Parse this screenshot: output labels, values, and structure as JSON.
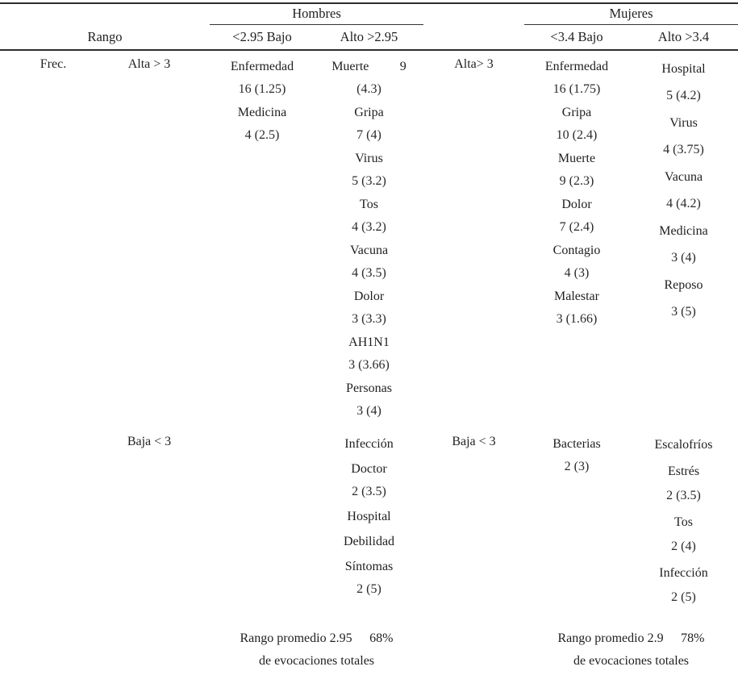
{
  "header": {
    "group_hombres": "Hombres",
    "group_mujeres": "Mujeres",
    "rango": "Rango",
    "hombres_bajo": "<2.95 Bajo",
    "hombres_alto": "Alto >2.95",
    "mujeres_bajo": "<3.4  Bajo",
    "mujeres_alto": "Alto  >3.4"
  },
  "labels": {
    "frec": "Frec.",
    "alta_hombres": "Alta > 3",
    "baja_hombres": "Baja < 3",
    "alta_mujeres": "Alta> 3",
    "baja_mujeres": "Baja < 3"
  },
  "cells": {
    "hombres_bajo_alta": [
      {
        "word": "Enfermedad",
        "value": "16 (1.25)"
      },
      {
        "word": "Medicina",
        "value": "4 (2.5)"
      }
    ],
    "hombres_alto_alta": [
      {
        "word": "Muerte",
        "num": "9",
        "value": "(4.3)"
      },
      {
        "word": "Gripa",
        "value": "7 (4)"
      },
      {
        "word": "Virus",
        "value": "5 (3.2)"
      },
      {
        "word": "Tos",
        "value": "4 (3.2)"
      },
      {
        "word": "Vacuna",
        "value": "4 (3.5)"
      },
      {
        "word": "Dolor",
        "value": "3 (3.3)"
      },
      {
        "word": "AH1N1",
        "value": "3 (3.66)"
      },
      {
        "word": "Personas",
        "value": "3 (4)"
      }
    ],
    "hombres_alto_baja": [
      {
        "word": "Infección"
      },
      {
        "word": "Doctor",
        "value": "2 (3.5)"
      },
      {
        "word": "Hospital"
      },
      {
        "word": "Debilidad"
      },
      {
        "word": "Síntomas",
        "value": "2 (5)"
      }
    ],
    "mujeres_bajo_alta": [
      {
        "word": "Enfermedad",
        "value": "16  (1.75)"
      },
      {
        "word": "Gripa",
        "value": "10 (2.4)"
      },
      {
        "word": "Muerte",
        "value": "9  (2.3)"
      },
      {
        "word": "Dolor",
        "value": "7 (2.4)"
      },
      {
        "word": "Contagio",
        "value": "4 (3)"
      },
      {
        "word": "Malestar",
        "value": "3  (1.66)"
      }
    ],
    "mujeres_alto_alta": [
      {
        "word": "Hospital",
        "value": "5 (4.2)"
      },
      {
        "word": "Virus",
        "value": "4 (3.75)"
      },
      {
        "word": "Vacuna",
        "value": "4 (4.2)"
      },
      {
        "word": "Medicina",
        "value": "3  (4)"
      },
      {
        "word": "Reposo",
        "value": "3  (5)"
      }
    ],
    "mujeres_bajo_baja": [
      {
        "word": "Bacterias",
        "value": "2 (3)"
      }
    ],
    "mujeres_alto_baja": [
      {
        "word": "Escalofríos"
      },
      {
        "word": "Estrés",
        "value": "2 (3.5)"
      },
      {
        "word": "Tos",
        "value": "2 (4)"
      },
      {
        "word": "Infección",
        "value": "2 (5)"
      }
    ]
  },
  "footer": {
    "hombres": {
      "promedio": "Rango promedio 2.95",
      "pct": "68%",
      "line2": "de evocaciones totales"
    },
    "mujeres": {
      "promedio": "Rango promedio 2.9",
      "pct": "78%",
      "line2": "de evocaciones totales"
    }
  }
}
